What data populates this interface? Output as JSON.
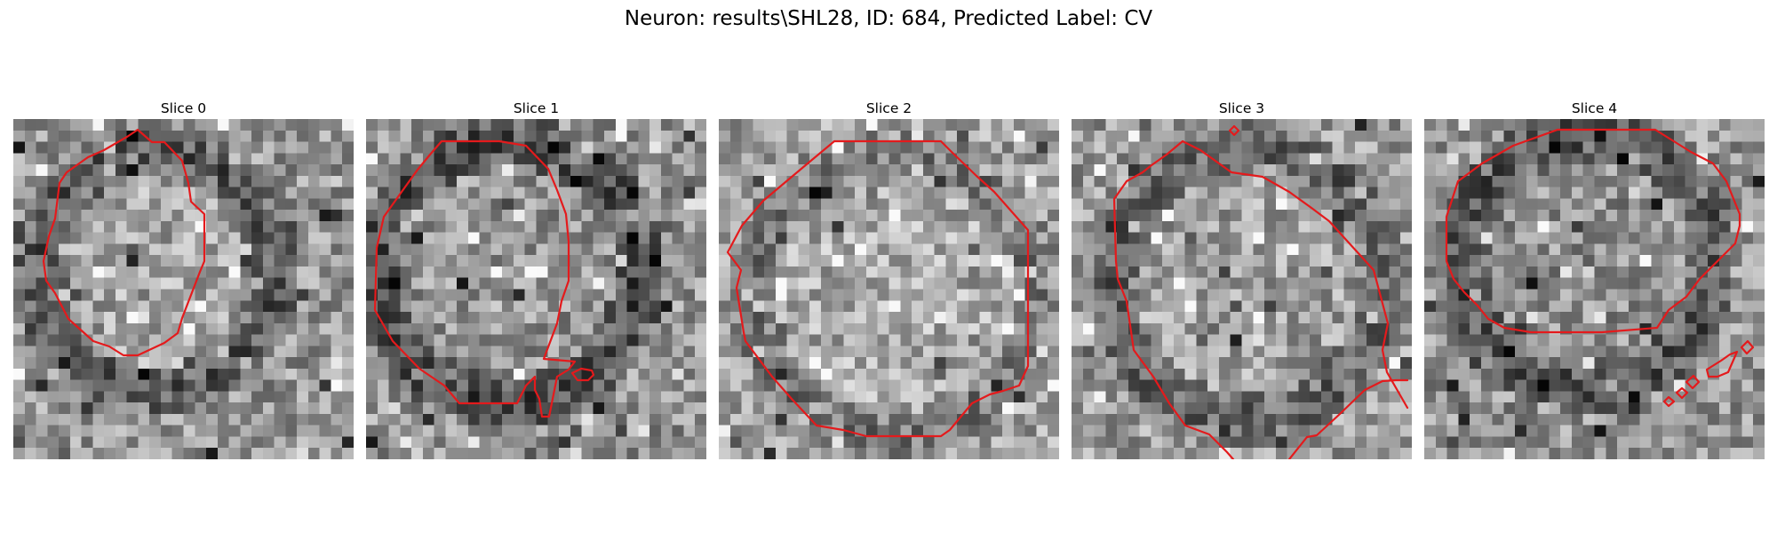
{
  "figure": {
    "title": "Neuron: results\\SHL28, ID: 684, Predicted Label: CV",
    "contour_color": "#e41a1c",
    "colormap": "gray"
  },
  "slices": [
    {
      "title": "Slice 0"
    },
    {
      "title": "Slice 1"
    },
    {
      "title": "Slice 2"
    },
    {
      "title": "Slice 3"
    },
    {
      "title": "Slice 4"
    }
  ]
}
